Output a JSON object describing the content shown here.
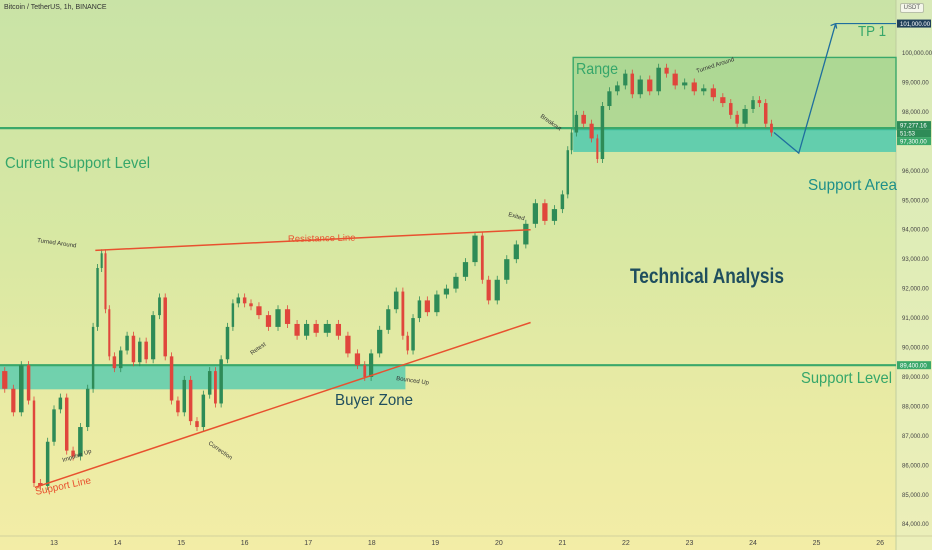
{
  "header": {
    "symbol": "Bitcoin / TetherUS, 1h, BINANCE",
    "currency": "USDT"
  },
  "chart_data": {
    "type": "candlestick",
    "ylim": [
      83600,
      101800
    ],
    "xlim": [
      12.15,
      26.25
    ],
    "y_ticks": [
      84000,
      85000,
      86000,
      87000,
      88000,
      89000,
      90000,
      91000,
      92000,
      93000,
      94000,
      95000,
      96000,
      97000,
      98000,
      99000,
      100000
    ],
    "y_tick_labels": [
      "84,000.00",
      "85,000.00",
      "86,000.00",
      "87,000.00",
      "88,000.00",
      "89,000.00",
      "90,000.00",
      "91,000.00",
      "92,000.00",
      "93,000.00",
      "94,000.00",
      "95,000.00",
      "96,000.00",
      "97,000.00",
      "98,000.00",
      "99,000.00",
      "100,000.00"
    ],
    "x_ticks": [
      13,
      14,
      15,
      16,
      17,
      18,
      19,
      20,
      21,
      22,
      23,
      24,
      25,
      26
    ],
    "x_tick_labels": [
      "13",
      "14",
      "15",
      "16",
      "17",
      "18",
      "19",
      "20",
      "21",
      "22",
      "23",
      "24",
      "25",
      "26"
    ],
    "price_path": [
      [
        12.15,
        89200
      ],
      [
        12.3,
        88600
      ],
      [
        12.42,
        87800
      ],
      [
        12.55,
        89400
      ],
      [
        12.65,
        88200
      ],
      [
        12.72,
        85400
      ],
      [
        12.85,
        85300
      ],
      [
        12.95,
        86800
      ],
      [
        13.05,
        87900
      ],
      [
        13.15,
        88300
      ],
      [
        13.25,
        86500
      ],
      [
        13.35,
        86300
      ],
      [
        13.48,
        87300
      ],
      [
        13.58,
        88600
      ],
      [
        13.65,
        90700
      ],
      [
        13.72,
        92700
      ],
      [
        13.78,
        93200
      ],
      [
        13.84,
        91300
      ],
      [
        13.9,
        89700
      ],
      [
        14.0,
        89300
      ],
      [
        14.1,
        89900
      ],
      [
        14.2,
        90400
      ],
      [
        14.3,
        89500
      ],
      [
        14.4,
        90200
      ],
      [
        14.5,
        89600
      ],
      [
        14.62,
        91100
      ],
      [
        14.7,
        91700
      ],
      [
        14.8,
        89700
      ],
      [
        14.9,
        88200
      ],
      [
        15.0,
        87800
      ],
      [
        15.1,
        88900
      ],
      [
        15.2,
        87500
      ],
      [
        15.3,
        87300
      ],
      [
        15.4,
        88400
      ],
      [
        15.5,
        89200
      ],
      [
        15.58,
        88100
      ],
      [
        15.68,
        89600
      ],
      [
        15.78,
        90700
      ],
      [
        15.85,
        91500
      ],
      [
        15.95,
        91700
      ],
      [
        16.05,
        91500
      ],
      [
        16.15,
        91400
      ],
      [
        16.3,
        91100
      ],
      [
        16.45,
        90700
      ],
      [
        16.6,
        91300
      ],
      [
        16.75,
        90800
      ],
      [
        16.9,
        90400
      ],
      [
        17.05,
        90800
      ],
      [
        17.2,
        90500
      ],
      [
        17.4,
        90800
      ],
      [
        17.55,
        90400
      ],
      [
        17.7,
        89800
      ],
      [
        17.85,
        89400
      ],
      [
        17.93,
        89000
      ],
      [
        18.05,
        89800
      ],
      [
        18.2,
        90600
      ],
      [
        18.32,
        91300
      ],
      [
        18.45,
        91900
      ],
      [
        18.53,
        90400
      ],
      [
        18.6,
        89900
      ],
      [
        18.7,
        91000
      ],
      [
        18.8,
        91600
      ],
      [
        18.95,
        91200
      ],
      [
        19.1,
        91800
      ],
      [
        19.25,
        92000
      ],
      [
        19.4,
        92400
      ],
      [
        19.55,
        92900
      ],
      [
        19.7,
        93800
      ],
      [
        19.78,
        92300
      ],
      [
        19.9,
        91600
      ],
      [
        20.05,
        92300
      ],
      [
        20.2,
        93000
      ],
      [
        20.35,
        93500
      ],
      [
        20.5,
        94200
      ],
      [
        20.65,
        94900
      ],
      [
        20.8,
        94300
      ],
      [
        20.95,
        94700
      ],
      [
        21.05,
        95200
      ],
      [
        21.12,
        96700
      ],
      [
        21.17,
        97300
      ],
      [
        21.27,
        97900
      ],
      [
        21.4,
        97600
      ],
      [
        21.52,
        97100
      ],
      [
        21.58,
        96400
      ],
      [
        21.68,
        98200
      ],
      [
        21.8,
        98700
      ],
      [
        21.93,
        98900
      ],
      [
        22.05,
        99300
      ],
      [
        22.15,
        98600
      ],
      [
        22.3,
        99100
      ],
      [
        22.45,
        98700
      ],
      [
        22.58,
        99500
      ],
      [
        22.7,
        99300
      ],
      [
        22.85,
        98900
      ],
      [
        23.0,
        99000
      ],
      [
        23.15,
        98700
      ],
      [
        23.3,
        98800
      ],
      [
        23.45,
        98500
      ],
      [
        23.6,
        98300
      ],
      [
        23.7,
        97900
      ],
      [
        23.8,
        97600
      ],
      [
        23.95,
        98100
      ],
      [
        24.05,
        98400
      ],
      [
        24.15,
        98300
      ],
      [
        24.25,
        97600
      ],
      [
        24.33,
        97300
      ]
    ],
    "levels": {
      "current_support": 97450,
      "support_level": 89400,
      "tp1": 101000,
      "live_price": 97277.16
    },
    "zones": {
      "range": {
        "x": [
          21.17,
          26.25
        ],
        "y": [
          97400,
          99850
        ]
      },
      "support_area": {
        "x": [
          21.17,
          26.25
        ],
        "y": [
          96640,
          97450
        ]
      },
      "buyer_zone": {
        "x": [
          12.15,
          18.53
        ],
        "y": [
          88580,
          89400
        ]
      }
    },
    "lines": {
      "resistance": [
        [
          13.65,
          93300
        ],
        [
          20.5,
          94000
        ]
      ],
      "support": [
        [
          12.7,
          85250
        ],
        [
          20.5,
          90850
        ]
      ],
      "projection": [
        [
          24.33,
          97300
        ],
        [
          24.72,
          96600
        ],
        [
          25.3,
          101000
        ],
        [
          25.5,
          100800
        ]
      ]
    },
    "price_labels": {
      "tp1": "101,000.00",
      "current": "97,277.16",
      "countdown": "51:53",
      "support_area": "97,300.00",
      "support_level": "89,400.00"
    },
    "annotations": {
      "title": "Technical Analysis",
      "current_support": "Current Support Level",
      "support_level": "Support Level",
      "support_area": "Support Area",
      "range": "Range",
      "tp1": "TP 1",
      "buyer_zone": "Buyer Zone",
      "resistance_line": "Resistance Line",
      "support_line": "Support Line",
      "turned_around_1": "Turned Around",
      "turned_around_2": "Turned Around",
      "impulse_up": "Impulse Up",
      "correction": "Correction",
      "retest": "Retest",
      "bounced_up": "Bounced Up",
      "exited": "Exited",
      "breakout": "Breakout"
    },
    "colors": {
      "green_level": "#3aa86a",
      "teal_zone": "#3ec6b0",
      "red_line": "#e8512f",
      "projection": "#1f6e9e",
      "text_dark": "#1f4e5e",
      "candle_up": "#2e8b57",
      "candle_down": "#e0463c"
    }
  }
}
